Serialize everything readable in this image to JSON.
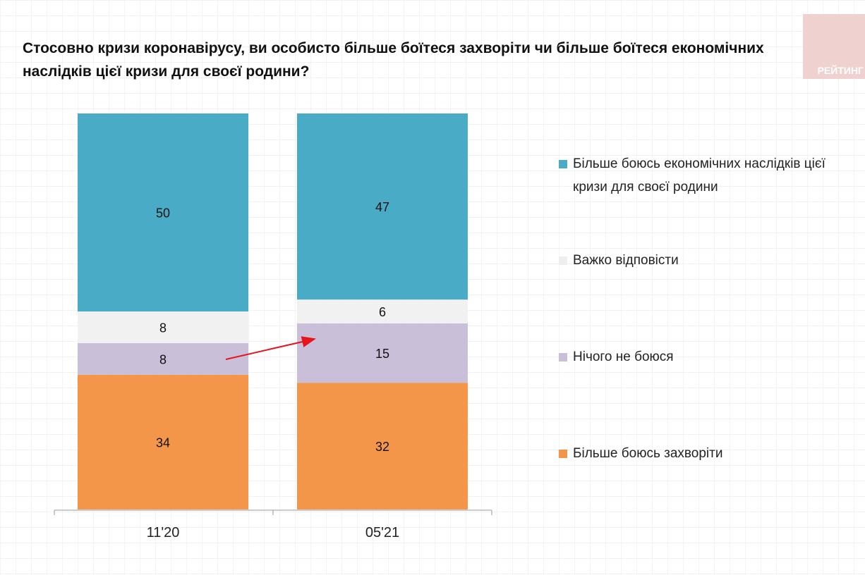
{
  "title": "Стосовно кризи коронавірусу, ви особисто більше боїтеся захворіти чи більше боїтеся економічних наслідків цієї кризи для своєї родини?",
  "logo": "РЕЙТИНГ",
  "chart_data": {
    "type": "bar",
    "stacked": true,
    "title": "Стосовно кризи коронавірусу, ви особисто більше боїтеся захворіти чи більше боїтеся економічних наслідків цієї кризи для своєї родини?",
    "categories": [
      "11'20",
      "05'21"
    ],
    "series": [
      {
        "name": "Більше боюсь захворіти",
        "color": "#f4964a",
        "values": [
          34,
          32
        ]
      },
      {
        "name": "Нічого не боюся",
        "color": "#c9bfd9",
        "values": [
          8,
          15
        ]
      },
      {
        "name": "Важко відповісти",
        "color": "#f1f1f1",
        "values": [
          8,
          6
        ]
      },
      {
        "name": "Більше боюсь економічних наслідків цієї кризи для своєї родини",
        "color": "#4aabc6",
        "values": [
          50,
          47
        ]
      }
    ],
    "ylim": [
      0,
      100
    ],
    "legend_position": "right",
    "annotation": "red arrow from 11'20 'Нічого не боюся' to 05'21 'Нічого не боюся'"
  }
}
